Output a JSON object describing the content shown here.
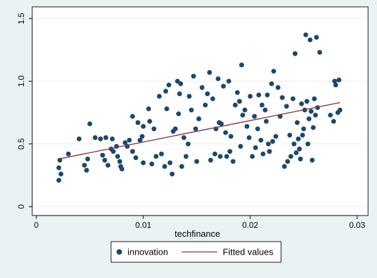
{
  "chart_data": {
    "type": "scatter",
    "title": "",
    "xlabel": "techfinance",
    "ylabel": "",
    "xlim": [
      0,
      0.03
    ],
    "ylim": [
      0,
      1.5
    ],
    "x_ticks": [
      0,
      0.01,
      0.02,
      0.03
    ],
    "x_tick_labels": [
      "0",
      "0.01",
      "0.02",
      "0.03"
    ],
    "y_ticks": [
      0,
      0.5,
      1.0,
      1.5
    ],
    "y_tick_labels": [
      "0",
      "0.5",
      "1.0",
      "1.5"
    ],
    "grid": "horizontal",
    "legend_position": "bottom",
    "colors": {
      "scatter": "#1a476f",
      "fit": "#90353b",
      "background": "#eaf2f3",
      "plot": "#ffffff"
    },
    "series": [
      {
        "name": "innovation",
        "type": "scatter",
        "points": [
          [
            0.0021,
            0.21
          ],
          [
            0.0021,
            0.31
          ],
          [
            0.0022,
            0.37
          ],
          [
            0.0023,
            0.26
          ],
          [
            0.003,
            0.42
          ],
          [
            0.004,
            0.54
          ],
          [
            0.0045,
            0.33
          ],
          [
            0.0047,
            0.29
          ],
          [
            0.0048,
            0.38
          ],
          [
            0.005,
            0.66
          ],
          [
            0.0055,
            0.55
          ],
          [
            0.006,
            0.54
          ],
          [
            0.0062,
            0.41
          ],
          [
            0.0064,
            0.37
          ],
          [
            0.0065,
            0.55
          ],
          [
            0.0067,
            0.33
          ],
          [
            0.007,
            0.46
          ],
          [
            0.0071,
            0.54
          ],
          [
            0.0072,
            0.44
          ],
          [
            0.0075,
            0.48
          ],
          [
            0.0076,
            0.4
          ],
          [
            0.0078,
            0.36
          ],
          [
            0.0079,
            0.32
          ],
          [
            0.008,
            0.3
          ],
          [
            0.0083,
            0.51
          ],
          [
            0.0085,
            0.48
          ],
          [
            0.0087,
            0.53
          ],
          [
            0.009,
            0.72
          ],
          [
            0.009,
            0.44
          ],
          [
            0.0093,
            0.39
          ],
          [
            0.0095,
            0.67
          ],
          [
            0.0097,
            0.53
          ],
          [
            0.0099,
            0.56
          ],
          [
            0.01,
            0.64
          ],
          [
            0.01,
            0.35
          ],
          [
            0.0105,
            0.78
          ],
          [
            0.0106,
            0.68
          ],
          [
            0.0108,
            0.34
          ],
          [
            0.011,
            0.62
          ],
          [
            0.0112,
            0.4
          ],
          [
            0.0115,
            0.88
          ],
          [
            0.0117,
            0.42
          ],
          [
            0.012,
            0.32
          ],
          [
            0.0121,
            0.92
          ],
          [
            0.0122,
            0.78
          ],
          [
            0.0124,
            0.97
          ],
          [
            0.0125,
            0.35
          ],
          [
            0.0127,
            0.26
          ],
          [
            0.0128,
            0.6
          ],
          [
            0.013,
            0.62
          ],
          [
            0.0132,
            1.0
          ],
          [
            0.0133,
            0.74
          ],
          [
            0.0134,
            0.9
          ],
          [
            0.0135,
            0.98
          ],
          [
            0.0136,
            0.32
          ],
          [
            0.0138,
            0.55
          ],
          [
            0.014,
            0.4
          ],
          [
            0.0142,
            0.5
          ],
          [
            0.0143,
            0.88
          ],
          [
            0.0145,
            0.77
          ],
          [
            0.0147,
            1.04
          ],
          [
            0.0149,
            0.62
          ],
          [
            0.015,
            0.36
          ],
          [
            0.0152,
            0.7
          ],
          [
            0.0155,
            0.95
          ],
          [
            0.0158,
            0.81
          ],
          [
            0.016,
            0.9
          ],
          [
            0.0162,
            1.07
          ],
          [
            0.0163,
            0.37
          ],
          [
            0.0165,
            0.86
          ],
          [
            0.0167,
            0.42
          ],
          [
            0.0168,
            0.62
          ],
          [
            0.017,
            1.02
          ],
          [
            0.0171,
            0.67
          ],
          [
            0.0172,
            0.4
          ],
          [
            0.0173,
            0.66
          ],
          [
            0.0175,
            0.96
          ],
          [
            0.0177,
            0.59
          ],
          [
            0.0178,
            0.4
          ],
          [
            0.018,
            1.0
          ],
          [
            0.0181,
            0.44
          ],
          [
            0.0182,
            0.56
          ],
          [
            0.0184,
            0.36
          ],
          [
            0.0186,
            0.81
          ],
          [
            0.0188,
            0.91
          ],
          [
            0.019,
            0.84
          ],
          [
            0.0191,
            0.48
          ],
          [
            0.0192,
            1.13
          ],
          [
            0.0193,
            0.73
          ],
          [
            0.0195,
            0.77
          ],
          [
            0.0197,
            0.64
          ],
          [
            0.0199,
            0.55
          ],
          [
            0.02,
            0.88
          ],
          [
            0.0202,
            0.4
          ],
          [
            0.0204,
            0.72
          ],
          [
            0.0205,
            0.47
          ],
          [
            0.0207,
            0.62
          ],
          [
            0.0208,
            0.89
          ],
          [
            0.021,
            0.53
          ],
          [
            0.0211,
            0.81
          ],
          [
            0.0212,
            0.42
          ],
          [
            0.0214,
            0.77
          ],
          [
            0.0215,
            0.68
          ],
          [
            0.0216,
            0.89
          ],
          [
            0.0217,
            0.5
          ],
          [
            0.0218,
            0.44
          ],
          [
            0.022,
            0.98
          ],
          [
            0.0221,
            0.52
          ],
          [
            0.0222,
            1.08
          ],
          [
            0.0224,
            0.56
          ],
          [
            0.0226,
            0.95
          ],
          [
            0.0228,
            0.72
          ],
          [
            0.023,
            0.87
          ],
          [
            0.0232,
            0.32
          ],
          [
            0.0234,
            0.8
          ],
          [
            0.0235,
            0.36
          ],
          [
            0.0237,
            0.57
          ],
          [
            0.0238,
            0.4
          ],
          [
            0.024,
            0.86
          ],
          [
            0.0241,
            0.5
          ],
          [
            0.0242,
            1.22
          ],
          [
            0.0243,
            0.43
          ],
          [
            0.0244,
            0.67
          ],
          [
            0.0245,
            0.54
          ],
          [
            0.0246,
            0.46
          ],
          [
            0.0247,
            0.38
          ],
          [
            0.0248,
            0.82
          ],
          [
            0.0249,
            0.57
          ],
          [
            0.025,
            0.62
          ],
          [
            0.0251,
            0.77
          ],
          [
            0.0252,
            1.37
          ],
          [
            0.0253,
            0.84
          ],
          [
            0.0254,
            0.5
          ],
          [
            0.0255,
            0.7
          ],
          [
            0.0256,
            1.33
          ],
          [
            0.0257,
            0.76
          ],
          [
            0.0258,
            0.37
          ],
          [
            0.0259,
            0.63
          ],
          [
            0.026,
            0.86
          ],
          [
            0.0261,
            0.73
          ],
          [
            0.0262,
            1.35
          ],
          [
            0.0263,
            0.79
          ],
          [
            0.0265,
            1.23
          ],
          [
            0.0275,
            0.73
          ],
          [
            0.0278,
            0.68
          ],
          [
            0.0279,
            1.0
          ],
          [
            0.028,
            0.97
          ],
          [
            0.0282,
            0.75
          ],
          [
            0.0283,
            1.01
          ],
          [
            0.0284,
            0.77
          ]
        ]
      },
      {
        "name": "Fitted values",
        "type": "line",
        "points": [
          [
            0.0021,
            0.38
          ],
          [
            0.0284,
            0.83
          ]
        ]
      }
    ]
  }
}
